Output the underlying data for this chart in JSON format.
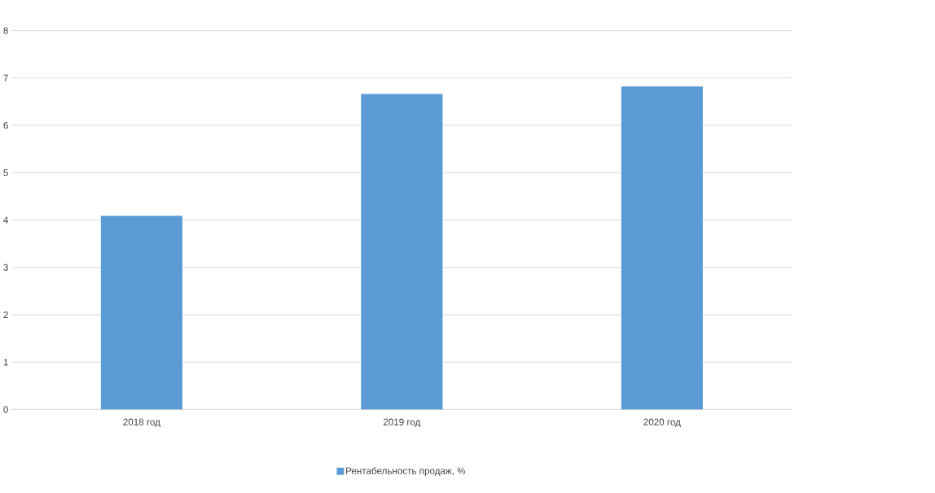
{
  "chart_data": {
    "type": "bar",
    "categories": [
      "2018 год",
      "2019 год",
      "2020 год"
    ],
    "series": [
      {
        "name": "Рентабельность продаж, %",
        "color": "#5b9bd5",
        "values": [
          4.09,
          6.66,
          6.82
        ]
      }
    ],
    "ylim": [
      0,
      8
    ],
    "yticks": [
      0,
      1,
      2,
      3,
      4,
      5,
      6,
      7,
      8
    ],
    "grid": "y",
    "legend": "bottom"
  }
}
